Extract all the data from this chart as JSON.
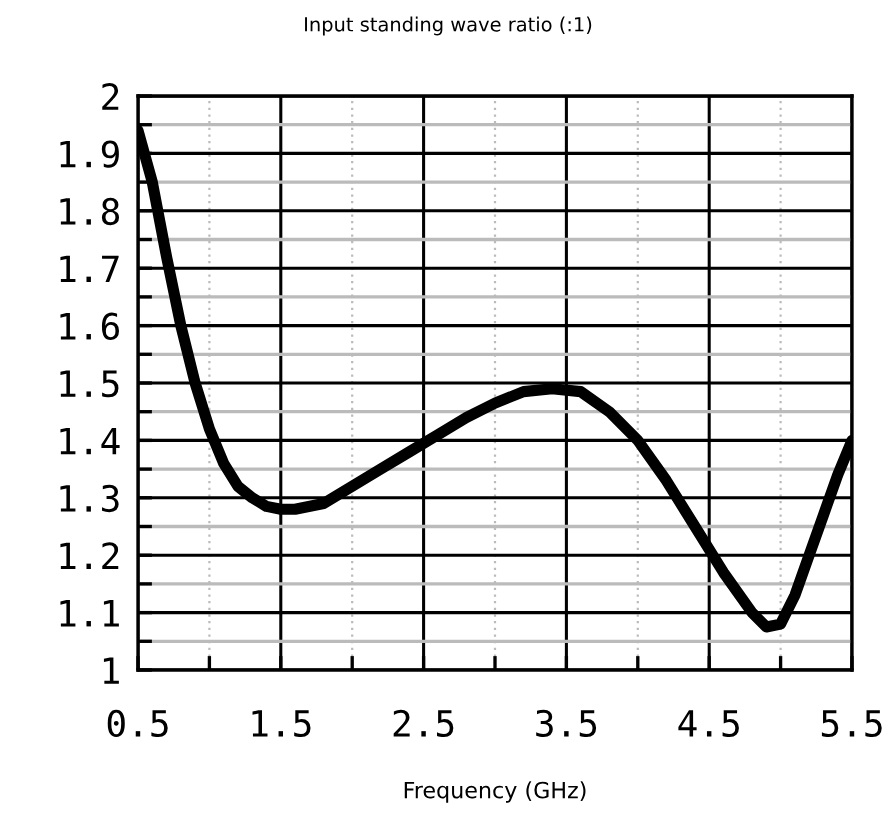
{
  "chart_data": {
    "type": "line",
    "title": "Input standing wave ratio (:1)",
    "xlabel": "Frequency (GHz)",
    "x": [
      0.5,
      0.6,
      0.7,
      0.8,
      0.9,
      1.0,
      1.1,
      1.2,
      1.3,
      1.4,
      1.5,
      1.6,
      1.8,
      2.0,
      2.2,
      2.4,
      2.6,
      2.8,
      3.0,
      3.2,
      3.4,
      3.6,
      3.8,
      4.0,
      4.2,
      4.4,
      4.6,
      4.8,
      4.9,
      5.0,
      5.1,
      5.2,
      5.3,
      5.4,
      5.5
    ],
    "series": [
      {
        "color": "#000000",
        "values": [
          1.94,
          1.85,
          1.72,
          1.6,
          1.5,
          1.42,
          1.36,
          1.32,
          1.3,
          1.285,
          1.28,
          1.28,
          1.29,
          1.32,
          1.35,
          1.38,
          1.41,
          1.44,
          1.465,
          1.485,
          1.49,
          1.485,
          1.45,
          1.4,
          1.33,
          1.25,
          1.17,
          1.1,
          1.075,
          1.08,
          1.13,
          1.2,
          1.27,
          1.34,
          1.4
        ]
      }
    ],
    "xlim": [
      0.5,
      5.5
    ],
    "ylim": [
      1,
      2
    ],
    "xticks": [
      0.5,
      {
        "value": 1,
        "label": null
      },
      1.5,
      {
        "value": 2,
        "label": null
      },
      2.5,
      {
        "value": 3,
        "label": null
      },
      3.5,
      {
        "value": 4,
        "label": null
      },
      4.5,
      {
        "value": 5,
        "label": null
      },
      5.5
    ],
    "yticks": [
      1,
      {
        "value": 1.05,
        "label": null
      },
      1.1,
      {
        "value": 1.15,
        "label": null
      },
      1.2,
      {
        "value": 1.25,
        "label": null
      },
      1.3,
      {
        "value": 1.35,
        "label": null
      },
      1.4,
      {
        "value": 1.45,
        "label": null
      },
      1.5,
      {
        "value": 1.55,
        "label": null
      },
      1.6,
      {
        "value": 1.65,
        "label": null
      },
      1.7,
      {
        "value": 1.75,
        "label": null
      },
      1.8,
      {
        "value": 1.85,
        "label": null
      },
      1.9,
      {
        "value": 1.95,
        "label": null
      },
      2
    ],
    "grid": true,
    "marker": "none",
    "line_style": "solid"
  }
}
